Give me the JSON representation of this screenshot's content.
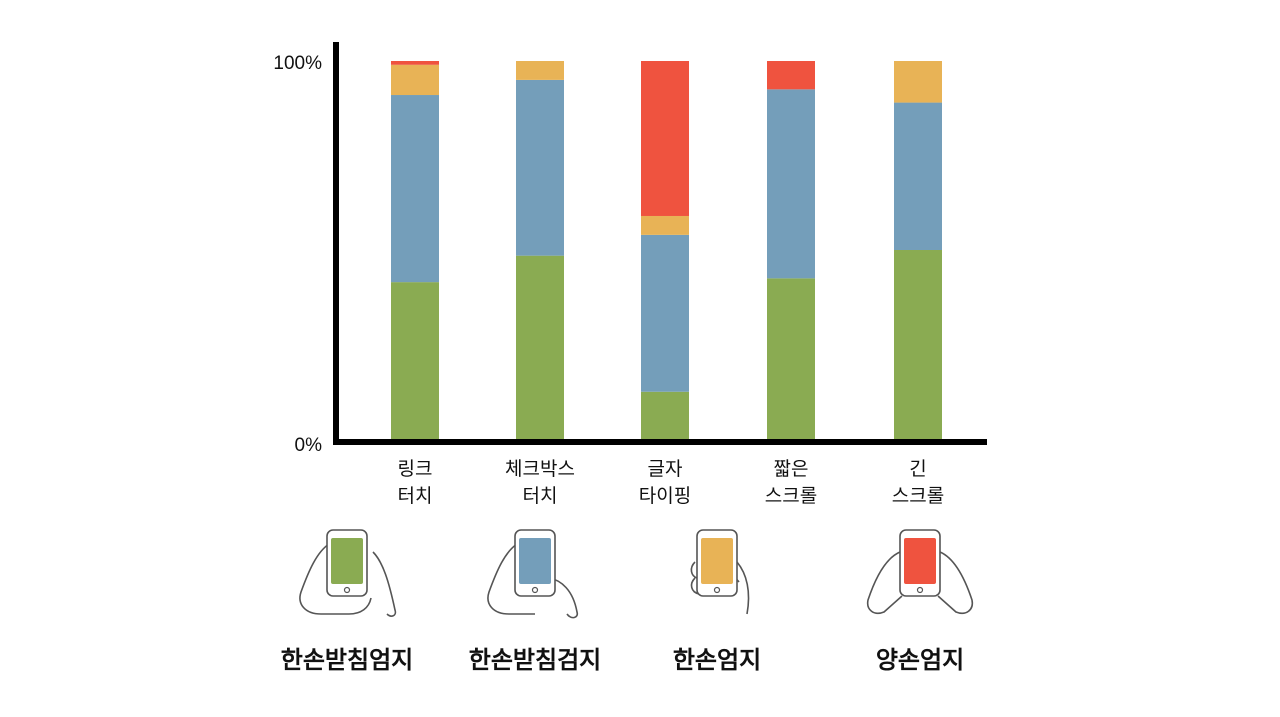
{
  "chart_data": {
    "type": "bar",
    "stacked": true,
    "title": "",
    "xlabel": "",
    "ylabel": "",
    "ylim": [
      0,
      100
    ],
    "yticks": [
      "0%",
      "100%"
    ],
    "categories": [
      [
        "링크",
        "터치"
      ],
      [
        "체크박스",
        "터치"
      ],
      [
        "글자",
        "타이핑"
      ],
      [
        "짧은",
        "스크롤"
      ],
      [
        "긴",
        "스크롤"
      ]
    ],
    "series": [
      {
        "name": "한손받침엄지",
        "color": "#8aab52",
        "values": [
          41.5,
          48.5,
          12.5,
          42.5,
          50
        ]
      },
      {
        "name": "한손받침검지",
        "color": "#749eba",
        "values": [
          49.5,
          46.5,
          41.5,
          50,
          39
        ]
      },
      {
        "name": "한손엄지",
        "color": "#e8b356",
        "values": [
          8,
          5,
          5,
          0,
          11
        ]
      },
      {
        "name": "양손엄지",
        "color": "#ef533f",
        "values": [
          1,
          0,
          41,
          7.5,
          0
        ]
      }
    ],
    "legend_placement": "bottom",
    "grid": false
  },
  "legend": [
    {
      "label": "한손받침엄지",
      "color": "#8aab52",
      "icon": "one-hand-supported-thumb-icon"
    },
    {
      "label": "한손받침검지",
      "color": "#749eba",
      "icon": "one-hand-supported-index-icon"
    },
    {
      "label": "한손엄지",
      "color": "#e8b356",
      "icon": "one-hand-thumb-icon"
    },
    {
      "label": "양손엄지",
      "color": "#ef533f",
      "icon": "two-hand-thumb-icon"
    }
  ]
}
